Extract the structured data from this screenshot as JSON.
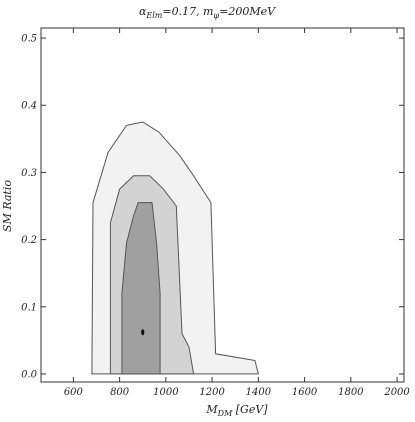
{
  "chart_data": {
    "type": "contour",
    "title_parts": {
      "a1": "α",
      "s1": "Elm",
      "t1": "=0.17, m",
      "s2": "φ",
      "t2": "=200MeV"
    },
    "xlabel_parts": {
      "main": "M",
      "sub": "DM",
      "unit": " [GeV]"
    },
    "ylabel": "SM Ratio",
    "xlim": [
      460,
      2030
    ],
    "ylim": [
      -0.012,
      0.515
    ],
    "xticks": [
      600,
      800,
      1000,
      1200,
      1400,
      1600,
      1800,
      2000
    ],
    "yticks": [
      0.0,
      0.1,
      0.2,
      0.3,
      0.4,
      0.5
    ],
    "ytick_labels": [
      "0.0",
      "0.1",
      "0.2",
      "0.3",
      "0.4",
      "0.5"
    ],
    "regions": [
      {
        "level": "outer",
        "color": "#f2f2f2",
        "points": [
          [
            680,
            0.0
          ],
          [
            685,
            0.255
          ],
          [
            750,
            0.33
          ],
          [
            830,
            0.37
          ],
          [
            900,
            0.375
          ],
          [
            970,
            0.36
          ],
          [
            1060,
            0.325
          ],
          [
            1120,
            0.295
          ],
          [
            1195,
            0.255
          ],
          [
            1215,
            0.03
          ],
          [
            1385,
            0.02
          ],
          [
            1400,
            0.0
          ]
        ]
      },
      {
        "level": "middle",
        "color": "#d3d3d3",
        "points": [
          [
            760,
            0.0
          ],
          [
            760,
            0.225
          ],
          [
            800,
            0.275
          ],
          [
            860,
            0.295
          ],
          [
            930,
            0.295
          ],
          [
            990,
            0.275
          ],
          [
            1045,
            0.25
          ],
          [
            1070,
            0.06
          ],
          [
            1100,
            0.04
          ],
          [
            1120,
            0.0
          ]
        ]
      },
      {
        "level": "inner",
        "color": "#a0a0a0",
        "points": [
          [
            810,
            0.0
          ],
          [
            810,
            0.12
          ],
          [
            830,
            0.195
          ],
          [
            860,
            0.235
          ],
          [
            880,
            0.255
          ],
          [
            940,
            0.255
          ],
          [
            960,
            0.195
          ],
          [
            975,
            0.12
          ],
          [
            975,
            0.0
          ]
        ]
      }
    ],
    "best_fit": {
      "x": 900,
      "y": 0.062
    }
  }
}
